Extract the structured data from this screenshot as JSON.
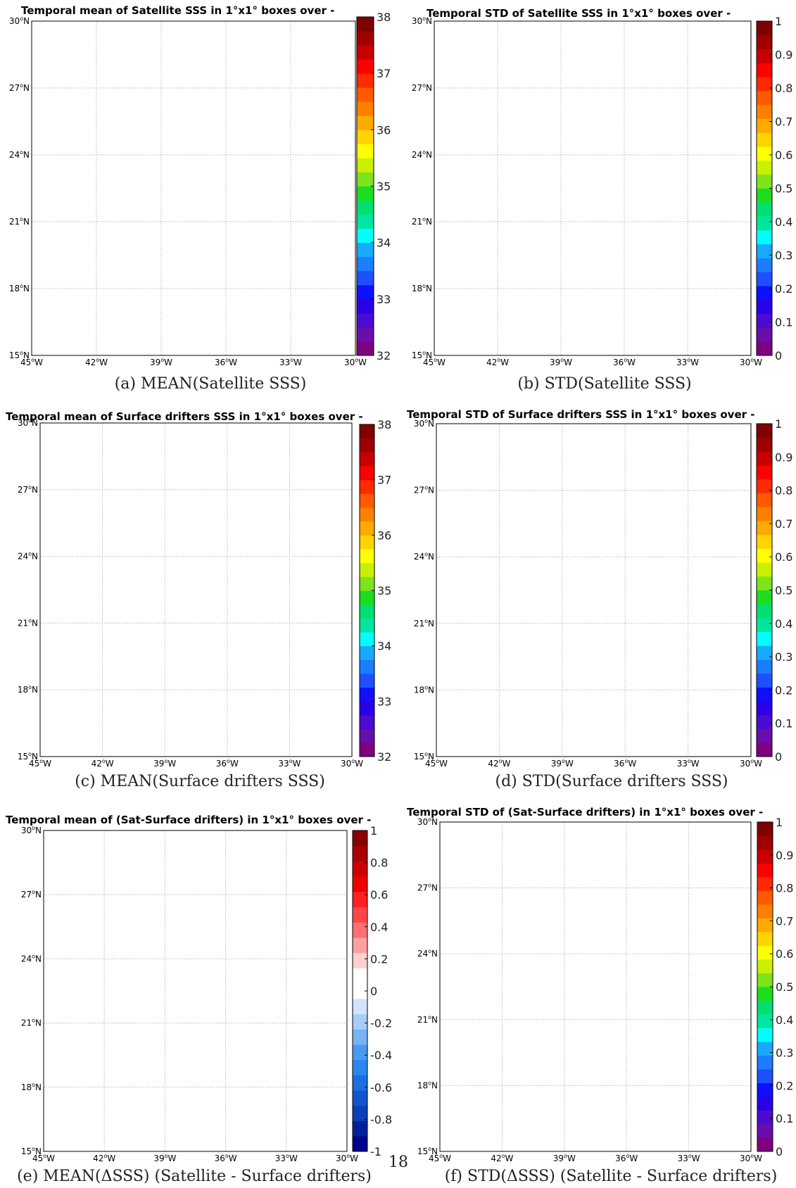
{
  "page": {
    "page_number": "18"
  },
  "colors": {
    "rainbow": [
      "#800080",
      "#6a0dad",
      "#4b0bd0",
      "#2a00e6",
      "#1010ff",
      "#1e50ff",
      "#1c7dff",
      "#18aaff",
      "#00ffff",
      "#00e6a0",
      "#00e070",
      "#1edc1e",
      "#7de31a",
      "#c8f000",
      "#ffff00",
      "#ffd400",
      "#ffaa00",
      "#ff8000",
      "#ff5a00",
      "#ff2a00",
      "#ff0000",
      "#c80000",
      "#a00000",
      "#800000"
    ],
    "diverging": [
      "#00008b",
      "#00209a",
      "#0a3fb8",
      "#1255cc",
      "#1b6ee0",
      "#2a86ea",
      "#4a9af0",
      "#78b4f4",
      "#a8cef8",
      "#d0e4fb",
      "#ffffff",
      "#ffffff",
      "#ffd0d0",
      "#ffa0a0",
      "#ff7070",
      "#ff4646",
      "#ff2020",
      "#ee0000",
      "#cc0000",
      "#aa0000",
      "#8b0000"
    ]
  },
  "chart_data": [
    {
      "panel": "a",
      "type": "heatmap",
      "title": "Temporal mean of Satellite SSS in 1°x1° boxes over -",
      "caption": "(a) MEAN(Satellite SSS)",
      "xticks": [
        "45°W",
        "42°W",
        "39°W",
        "36°W",
        "33°W",
        "30°W"
      ],
      "yticks": [
        "15°N",
        "18°N",
        "21°N",
        "24°N",
        "27°N",
        "30°N"
      ],
      "xlim": [
        -45,
        -30
      ],
      "ylim": [
        15,
        30
      ],
      "grid": true,
      "colorbar": {
        "range": [
          32,
          38
        ],
        "ticks": [
          "32",
          "33",
          "34",
          "35",
          "36",
          "37",
          "38"
        ],
        "cmap": "rainbow"
      },
      "values": []
    },
    {
      "panel": "b",
      "type": "heatmap",
      "title": "Temporal STD of Satellite SSS in 1°x1° boxes over -",
      "caption": "(b) STD(Satellite SSS)",
      "xticks": [
        "45°W",
        "42°W",
        "39°W",
        "36°W",
        "33°W",
        "30°W"
      ],
      "yticks": [
        "15°N",
        "18°N",
        "21°N",
        "24°N",
        "27°N",
        "30°N"
      ],
      "xlim": [
        -45,
        -30
      ],
      "ylim": [
        15,
        30
      ],
      "grid": true,
      "colorbar": {
        "range": [
          0,
          1
        ],
        "ticks": [
          "0",
          "0.1",
          "0.2",
          "0.3",
          "0.4",
          "0.5",
          "0.6",
          "0.7",
          "0.8",
          "0.9",
          "1"
        ],
        "cmap": "rainbow"
      },
      "values": []
    },
    {
      "panel": "c",
      "type": "heatmap",
      "title": "Temporal mean of Surface drifters SSS in 1°x1° boxes over -",
      "caption": "(c) MEAN(Surface drifters SSS)",
      "xticks": [
        "45°W",
        "42°W",
        "39°W",
        "36°W",
        "33°W",
        "30°W"
      ],
      "yticks": [
        "15°N",
        "18°N",
        "21°N",
        "24°N",
        "27°N",
        "30°N"
      ],
      "xlim": [
        -45,
        -30
      ],
      "ylim": [
        15,
        30
      ],
      "grid": true,
      "colorbar": {
        "range": [
          32,
          38
        ],
        "ticks": [
          "32",
          "33",
          "34",
          "35",
          "36",
          "37",
          "38"
        ],
        "cmap": "rainbow"
      },
      "values": []
    },
    {
      "panel": "d",
      "type": "heatmap",
      "title": "Temporal STD of Surface drifters SSS in 1°x1° boxes over -",
      "caption": "(d) STD(Surface drifters SSS)",
      "xticks": [
        "45°W",
        "42°W",
        "39°W",
        "36°W",
        "33°W",
        "30°W"
      ],
      "yticks": [
        "15°N",
        "18°N",
        "21°N",
        "24°N",
        "27°N",
        "30°N"
      ],
      "xlim": [
        -45,
        -30
      ],
      "ylim": [
        15,
        30
      ],
      "grid": true,
      "colorbar": {
        "range": [
          0,
          1
        ],
        "ticks": [
          "0",
          "0.1",
          "0.2",
          "0.3",
          "0.4",
          "0.5",
          "0.6",
          "0.7",
          "0.8",
          "0.9",
          "1"
        ],
        "cmap": "rainbow"
      },
      "values": []
    },
    {
      "panel": "e",
      "type": "heatmap",
      "title": "Temporal mean of (Sat-Surface drifters) in 1°x1° boxes over -",
      "caption": "(e) MEAN(ΔSSS) (Satellite - Surface drifters)",
      "xticks": [
        "45°W",
        "42°W",
        "39°W",
        "36°W",
        "33°W",
        "30°W"
      ],
      "yticks": [
        "15°N",
        "18°N",
        "21°N",
        "24°N",
        "27°N",
        "30°N"
      ],
      "xlim": [
        -45,
        -30
      ],
      "ylim": [
        15,
        30
      ],
      "grid": true,
      "colorbar": {
        "range": [
          -1,
          1
        ],
        "ticks": [
          "-1",
          "-0.8",
          "-0.6",
          "-0.4",
          "-0.2",
          "0",
          "0.2",
          "0.4",
          "0.6",
          "0.8",
          "1"
        ],
        "cmap": "diverging"
      },
      "values": []
    },
    {
      "panel": "f",
      "type": "heatmap",
      "title": "Temporal STD of (Sat-Surface drifters) in 1°x1° boxes over -",
      "caption": "(f) STD(ΔSSS) (Satellite - Surface drifters)",
      "xticks": [
        "45°W",
        "42°W",
        "39°W",
        "36°W",
        "33°W",
        "30°W"
      ],
      "yticks": [
        "15°N",
        "18°N",
        "21°N",
        "24°N",
        "27°N",
        "30°N"
      ],
      "xlim": [
        -45,
        -30
      ],
      "ylim": [
        15,
        30
      ],
      "grid": true,
      "colorbar": {
        "range": [
          0,
          1
        ],
        "ticks": [
          "0",
          "0.1",
          "0.2",
          "0.3",
          "0.4",
          "0.5",
          "0.6",
          "0.7",
          "0.8",
          "0.9",
          "1"
        ],
        "cmap": "rainbow"
      },
      "values": []
    }
  ]
}
